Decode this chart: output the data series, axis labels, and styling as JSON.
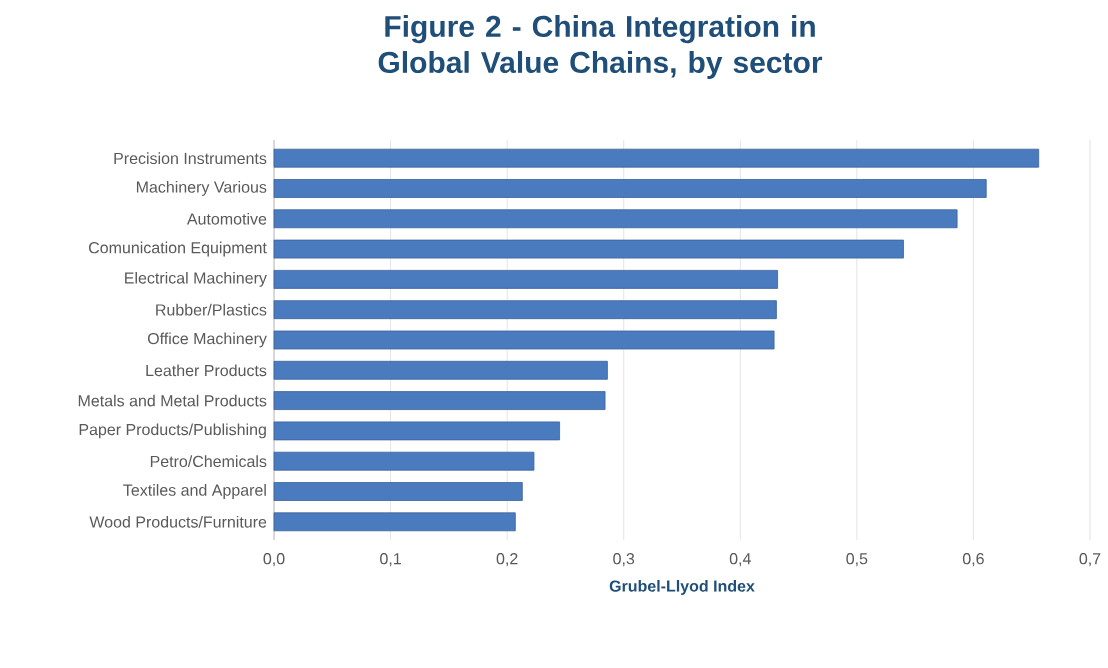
{
  "chart_data": {
    "type": "bar",
    "orientation": "horizontal",
    "title": "Figure 2 - China Integration in Global Value Chains, by sector",
    "xlabel": "Grubel-Llyod Index",
    "categories": [
      "Precision Instruments",
      "Machinery Various",
      "Automotive",
      "Comunication Equipment",
      "Electrical Machinery",
      "Rubber/Plastics",
      "Office Machinery",
      "Leather Products",
      "Metals and Metal Products",
      "Paper Products/Publishing",
      "Petro/Chemicals",
      "Textiles and Apparel",
      "Wood Products/Furniture"
    ],
    "values": [
      0.656,
      0.611,
      0.586,
      0.54,
      0.432,
      0.431,
      0.429,
      0.286,
      0.284,
      0.245,
      0.223,
      0.213,
      0.207
    ],
    "color": "#4a7bbf",
    "xlim": [
      0,
      0.7
    ],
    "xticks": [
      {
        "value": 0,
        "label": "0,0"
      },
      {
        "value": 0.1,
        "label": "0,1"
      },
      {
        "value": 0.2,
        "label": "0,2"
      },
      {
        "value": 0.3,
        "label": "0,3"
      },
      {
        "value": 0.4,
        "label": "0,4"
      },
      {
        "value": 0.5,
        "label": "0,5"
      },
      {
        "value": 0.6,
        "label": "0,6"
      },
      {
        "value": 0.7,
        "label": "0,7"
      }
    ],
    "grid": "x"
  }
}
